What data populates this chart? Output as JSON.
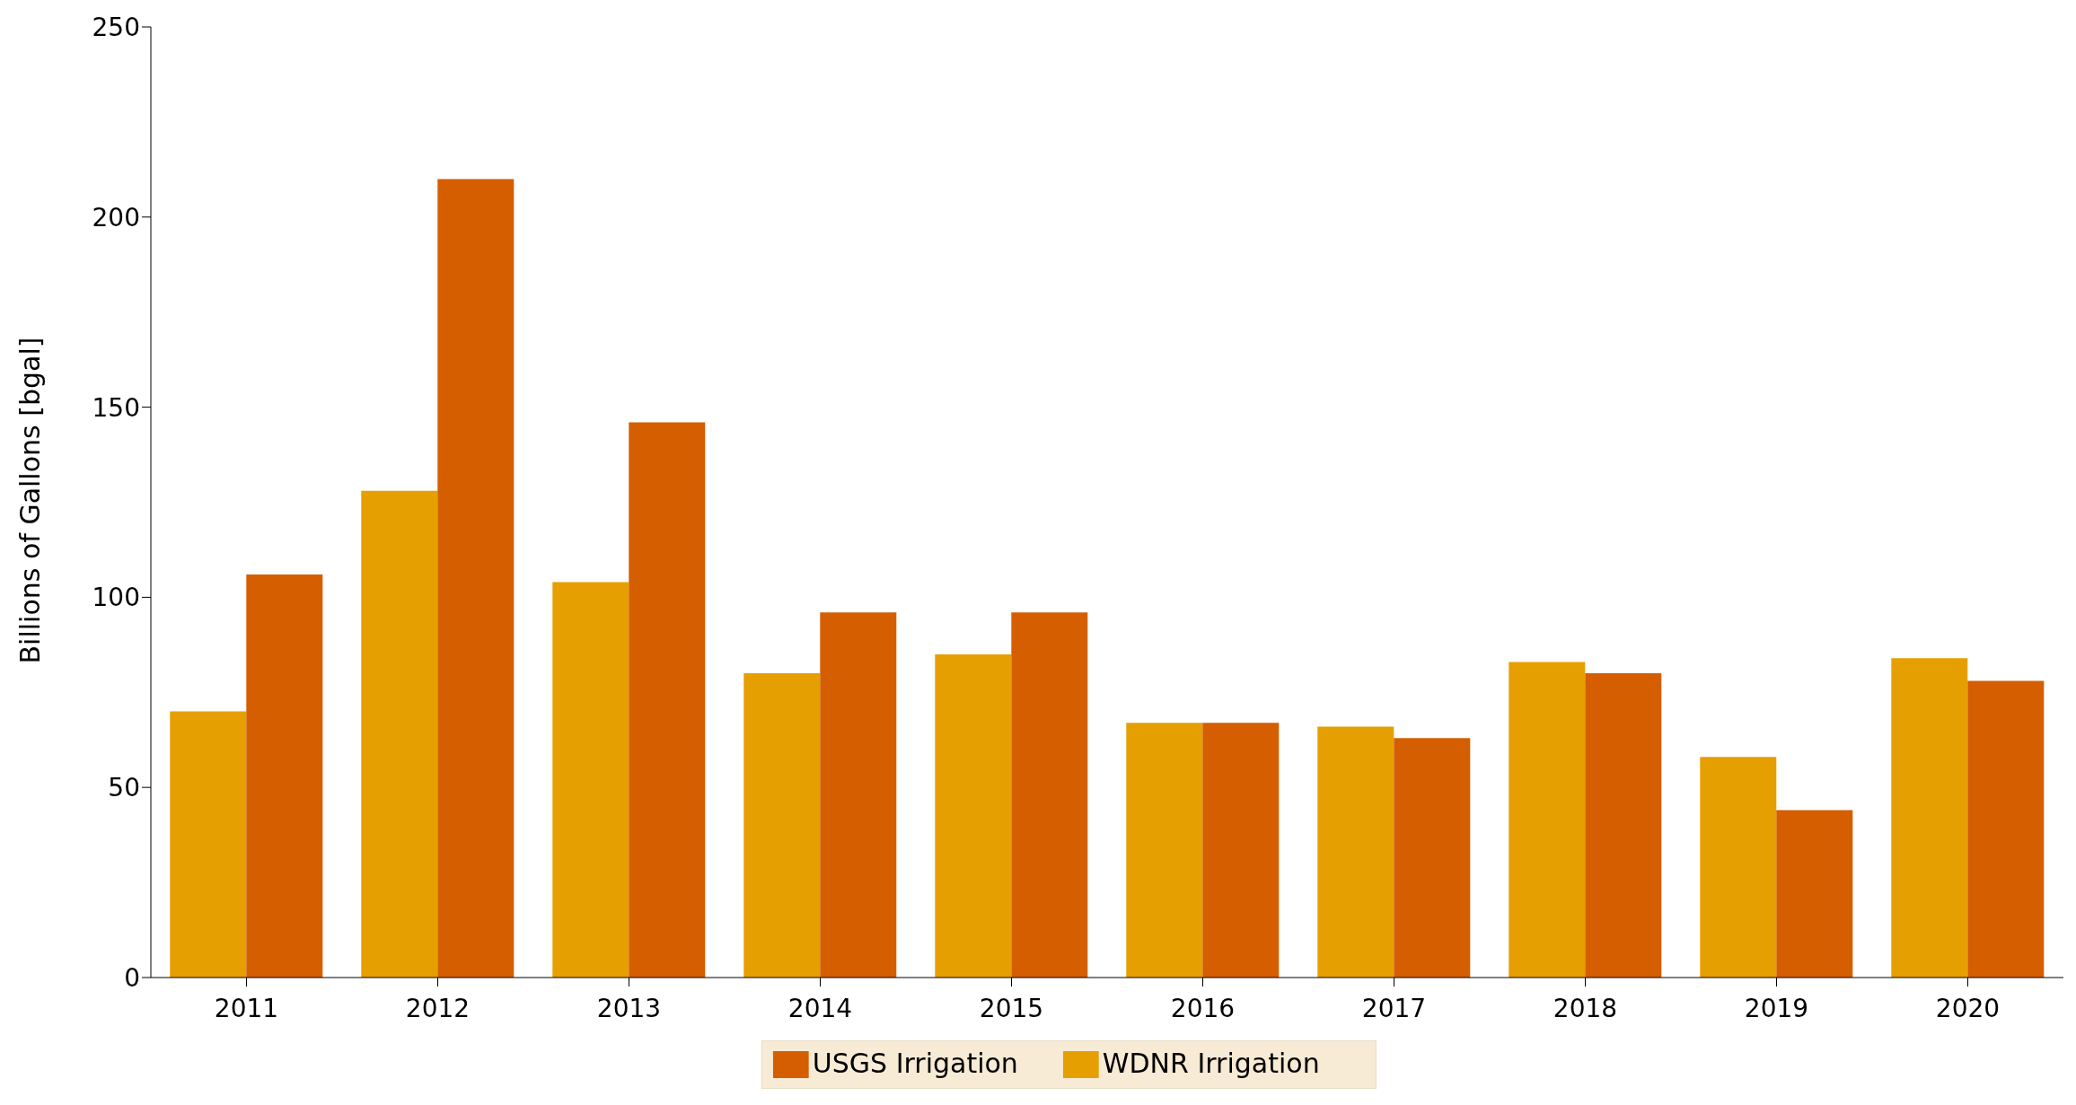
{
  "chart_data": {
    "type": "bar",
    "ylabel": "Billions of Gallons [bgal]",
    "categories": [
      "2011",
      "2012",
      "2013",
      "2014",
      "2015",
      "2016",
      "2017",
      "2018",
      "2019",
      "2020"
    ],
    "series": [
      {
        "name": "WDNR Irrigation",
        "color": "#e69f00",
        "values": [
          70,
          128,
          104,
          80,
          85,
          67,
          66,
          83,
          58,
          84
        ]
      },
      {
        "name": "USGS Irrigation",
        "color": "#d55e00",
        "values": [
          106,
          210,
          146,
          96,
          96,
          67,
          63,
          80,
          44,
          78
        ]
      }
    ],
    "ylim": [
      0,
      250
    ],
    "yticks": [
      0,
      50,
      100,
      150,
      200,
      250
    ],
    "grid": false,
    "legend": "bottom"
  }
}
